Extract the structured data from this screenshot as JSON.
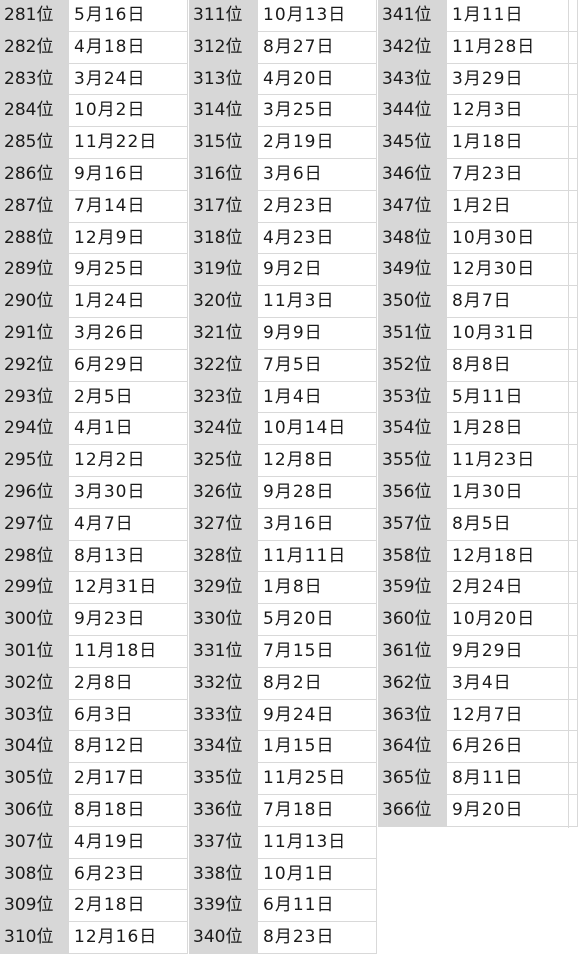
{
  "columns": [
    {
      "rows": [
        {
          "rank": "281位",
          "date": "5月16日"
        },
        {
          "rank": "282位",
          "date": "4月18日"
        },
        {
          "rank": "283位",
          "date": "3月24日"
        },
        {
          "rank": "284位",
          "date": "10月2日"
        },
        {
          "rank": "285位",
          "date": "11月22日"
        },
        {
          "rank": "286位",
          "date": "9月16日"
        },
        {
          "rank": "287位",
          "date": "7月14日"
        },
        {
          "rank": "288位",
          "date": "12月9日"
        },
        {
          "rank": "289位",
          "date": "9月25日"
        },
        {
          "rank": "290位",
          "date": "1月24日"
        },
        {
          "rank": "291位",
          "date": "3月26日"
        },
        {
          "rank": "292位",
          "date": "6月29日"
        },
        {
          "rank": "293位",
          "date": "2月5日"
        },
        {
          "rank": "294位",
          "date": "4月1日"
        },
        {
          "rank": "295位",
          "date": "12月2日"
        },
        {
          "rank": "296位",
          "date": "3月30日"
        },
        {
          "rank": "297位",
          "date": "4月7日"
        },
        {
          "rank": "298位",
          "date": "8月13日"
        },
        {
          "rank": "299位",
          "date": "12月31日"
        },
        {
          "rank": "300位",
          "date": "9月23日"
        },
        {
          "rank": "301位",
          "date": "11月18日"
        },
        {
          "rank": "302位",
          "date": "2月8日"
        },
        {
          "rank": "303位",
          "date": "6月3日"
        },
        {
          "rank": "304位",
          "date": "8月12日"
        },
        {
          "rank": "305位",
          "date": "2月17日"
        },
        {
          "rank": "306位",
          "date": "8月18日"
        },
        {
          "rank": "307位",
          "date": "4月19日"
        },
        {
          "rank": "308位",
          "date": "6月23日"
        },
        {
          "rank": "309位",
          "date": "2月18日"
        },
        {
          "rank": "310位",
          "date": "12月16日"
        }
      ]
    },
    {
      "rows": [
        {
          "rank": "311位",
          "date": "10月13日"
        },
        {
          "rank": "312位",
          "date": "8月27日"
        },
        {
          "rank": "313位",
          "date": "4月20日"
        },
        {
          "rank": "314位",
          "date": "3月25日"
        },
        {
          "rank": "315位",
          "date": "2月19日"
        },
        {
          "rank": "316位",
          "date": "3月6日"
        },
        {
          "rank": "317位",
          "date": "2月23日"
        },
        {
          "rank": "318位",
          "date": "4月23日"
        },
        {
          "rank": "319位",
          "date": "9月2日"
        },
        {
          "rank": "320位",
          "date": "11月3日"
        },
        {
          "rank": "321位",
          "date": "9月9日"
        },
        {
          "rank": "322位",
          "date": "7月5日"
        },
        {
          "rank": "323位",
          "date": "1月4日"
        },
        {
          "rank": "324位",
          "date": "10月14日"
        },
        {
          "rank": "325位",
          "date": "12月8日"
        },
        {
          "rank": "326位",
          "date": "9月28日"
        },
        {
          "rank": "327位",
          "date": "3月16日"
        },
        {
          "rank": "328位",
          "date": "11月11日"
        },
        {
          "rank": "329位",
          "date": "1月8日"
        },
        {
          "rank": "330位",
          "date": "5月20日"
        },
        {
          "rank": "331位",
          "date": "7月15日"
        },
        {
          "rank": "332位",
          "date": "8月2日"
        },
        {
          "rank": "333位",
          "date": "9月24日"
        },
        {
          "rank": "334位",
          "date": "1月15日"
        },
        {
          "rank": "335位",
          "date": "11月25日"
        },
        {
          "rank": "336位",
          "date": "7月18日"
        },
        {
          "rank": "337位",
          "date": "11月13日"
        },
        {
          "rank": "338位",
          "date": "10月1日"
        },
        {
          "rank": "339位",
          "date": "6月11日"
        },
        {
          "rank": "340位",
          "date": "8月23日"
        }
      ]
    },
    {
      "rows": [
        {
          "rank": "341位",
          "date": "1月11日"
        },
        {
          "rank": "342位",
          "date": "11月28日"
        },
        {
          "rank": "343位",
          "date": "3月29日"
        },
        {
          "rank": "344位",
          "date": "12月3日"
        },
        {
          "rank": "345位",
          "date": "1月18日"
        },
        {
          "rank": "346位",
          "date": "7月23日"
        },
        {
          "rank": "347位",
          "date": "1月2日"
        },
        {
          "rank": "348位",
          "date": "10月30日"
        },
        {
          "rank": "349位",
          "date": "12月30日"
        },
        {
          "rank": "350位",
          "date": "8月7日"
        },
        {
          "rank": "351位",
          "date": "10月31日"
        },
        {
          "rank": "352位",
          "date": "8月8日"
        },
        {
          "rank": "353位",
          "date": "5月11日"
        },
        {
          "rank": "354位",
          "date": "1月28日"
        },
        {
          "rank": "355位",
          "date": "11月23日"
        },
        {
          "rank": "356位",
          "date": "1月30日"
        },
        {
          "rank": "357位",
          "date": "8月5日"
        },
        {
          "rank": "358位",
          "date": "12月18日"
        },
        {
          "rank": "359位",
          "date": "2月24日"
        },
        {
          "rank": "360位",
          "date": "10月20日"
        },
        {
          "rank": "361位",
          "date": "9月29日"
        },
        {
          "rank": "362位",
          "date": "3月4日"
        },
        {
          "rank": "363位",
          "date": "12月7日"
        },
        {
          "rank": "364位",
          "date": "6月26日"
        },
        {
          "rank": "365位",
          "date": "8月11日"
        },
        {
          "rank": "366位",
          "date": "9月20日"
        }
      ]
    }
  ]
}
